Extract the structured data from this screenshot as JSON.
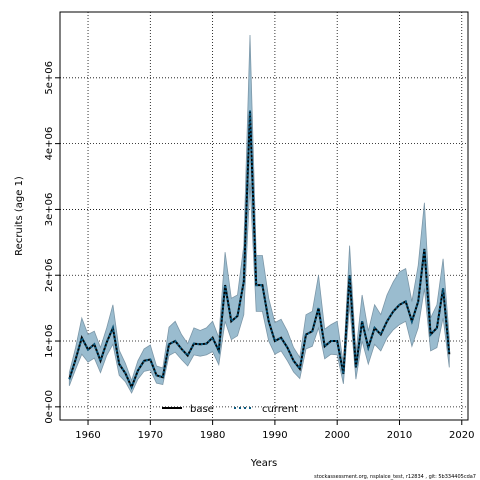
{
  "chart_data": {
    "type": "area",
    "xlabel": "Years",
    "ylabel": "Recruits (age 1)",
    "xlim": [
      1955.5,
      2021
    ],
    "ylim": [
      -200000,
      6000000
    ],
    "x_ticks": [
      1960,
      1970,
      1980,
      1990,
      2000,
      2010,
      2020
    ],
    "y_ticks": [
      0,
      1000000,
      2000000,
      3000000,
      4000000,
      5000000
    ],
    "y_tick_labels": [
      "0e+00",
      "1e+06",
      "2e+06",
      "3e+06",
      "4e+06",
      "5e+06"
    ],
    "grid": true,
    "legend_position": "bottom-center",
    "band_color": "#9abccf",
    "band_edge_color": "#7c97a8",
    "x": [
      1957,
      1958,
      1959,
      1960,
      1961,
      1962,
      1963,
      1964,
      1965,
      1966,
      1967,
      1968,
      1969,
      1970,
      1971,
      1972,
      1973,
      1974,
      1975,
      1976,
      1977,
      1978,
      1979,
      1980,
      1981,
      1982,
      1983,
      1984,
      1985,
      1986,
      1987,
      1988,
      1989,
      1990,
      1991,
      1992,
      1993,
      1994,
      1995,
      1996,
      1997,
      1998,
      1999,
      2000,
      2001,
      2002,
      2003,
      2004,
      2005,
      2006,
      2007,
      2008,
      2009,
      2010,
      2011,
      2012,
      2013,
      2014,
      2015,
      2016,
      2017,
      2018
    ],
    "series": [
      {
        "name": "base",
        "style": "solid",
        "color": "#000000",
        "values": [
          420000,
          720000,
          1050000,
          870000,
          950000,
          700000,
          980000,
          1200000,
          650000,
          510000,
          300000,
          550000,
          700000,
          720000,
          480000,
          450000,
          950000,
          1000000,
          880000,
          780000,
          960000,
          950000,
          960000,
          1050000,
          850000,
          1850000,
          1300000,
          1380000,
          1900000,
          4500000,
          1850000,
          1850000,
          1300000,
          1000000,
          1050000,
          900000,
          700000,
          580000,
          1100000,
          1150000,
          1500000,
          920000,
          1000000,
          1000000,
          500000,
          2000000,
          600000,
          1300000,
          900000,
          1200000,
          1100000,
          1300000,
          1450000,
          1550000,
          1600000,
          1300000,
          1600000,
          2400000,
          1100000,
          1200000,
          1800000,
          800000
        ]
      },
      {
        "name": "current",
        "style": "dotted",
        "color": "#0a5a80",
        "values": [
          420000,
          720000,
          1050000,
          870000,
          950000,
          700000,
          980000,
          1200000,
          650000,
          510000,
          300000,
          550000,
          700000,
          720000,
          480000,
          450000,
          950000,
          1000000,
          880000,
          780000,
          960000,
          950000,
          960000,
          1050000,
          850000,
          1850000,
          1300000,
          1380000,
          1900000,
          4500000,
          1850000,
          1850000,
          1300000,
          1000000,
          1050000,
          900000,
          700000,
          580000,
          1100000,
          1150000,
          1500000,
          920000,
          1000000,
          1000000,
          500000,
          2000000,
          600000,
          1300000,
          900000,
          1200000,
          1100000,
          1300000,
          1450000,
          1550000,
          1600000,
          1300000,
          1600000,
          2400000,
          1100000,
          1200000,
          1800000,
          800000
        ]
      }
    ],
    "band_lower": [
      320000,
      570000,
      800000,
      680000,
      740000,
      520000,
      780000,
      950000,
      480000,
      380000,
      210000,
      420000,
      540000,
      560000,
      360000,
      340000,
      780000,
      830000,
      720000,
      620000,
      790000,
      770000,
      790000,
      840000,
      640000,
      1300000,
      1020000,
      1080000,
      1400000,
      3400000,
      1450000,
      1450000,
      1000000,
      800000,
      850000,
      700000,
      530000,
      430000,
      880000,
      920000,
      1200000,
      730000,
      800000,
      790000,
      350000,
      1550000,
      420000,
      1000000,
      650000,
      950000,
      850000,
      1050000,
      1170000,
      1250000,
      1300000,
      920000,
      1200000,
      1800000,
      850000,
      900000,
      1350000,
      600000
    ],
    "band_upper": [
      520000,
      900000,
      1350000,
      1100000,
      1150000,
      900000,
      1200000,
      1550000,
      860000,
      660000,
      400000,
      700000,
      880000,
      940000,
      620000,
      590000,
      1210000,
      1300000,
      1100000,
      960000,
      1200000,
      1160000,
      1200000,
      1300000,
      1050000,
      2350000,
      1650000,
      1700000,
      2450000,
      5650000,
      2300000,
      2300000,
      1650000,
      1280000,
      1330000,
      1150000,
      900000,
      750000,
      1400000,
      1450000,
      2000000,
      1180000,
      1250000,
      1300000,
      650000,
      2450000,
      820000,
      1700000,
      1150000,
      1550000,
      1400000,
      1700000,
      1900000,
      2050000,
      2100000,
      1600000,
      2150000,
      3100000,
      1350000,
      1550000,
      2250000,
      1050000
    ],
    "footer": "stockassessment.org, nsplaice_test, r12834 , git: 5b334405cda7"
  }
}
